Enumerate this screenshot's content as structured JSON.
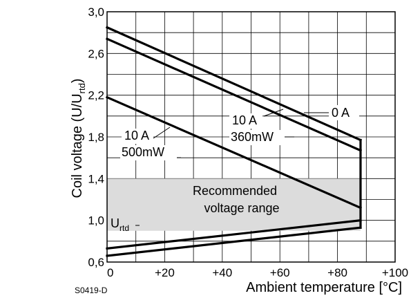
{
  "chart_data": {
    "type": "line",
    "xlabel": "Ambient temperature [°C]",
    "ylabel_main": "Coil voltage (U/U",
    "ylabel_sub": "rtd",
    "ylabel_close": ")",
    "figure_code": "S0419-D",
    "xlim": [
      0,
      100
    ],
    "ylim": [
      0.6,
      3.0
    ],
    "x_ticks": [
      "0",
      "+20",
      "+40",
      "+60",
      "+80",
      "+100"
    ],
    "y_ticks": [
      "0,6",
      "1,0",
      "1,4",
      "1,8",
      "2,2",
      "2,6",
      "3,0"
    ],
    "grid": true,
    "recommended_range": {
      "y_min": 0.9,
      "y_max": 1.4,
      "x_max": 88,
      "label_line1": "Recommended",
      "label_line2": "voltage range"
    },
    "series": [
      {
        "name": "0 A",
        "points": [
          [
            0,
            2.85
          ],
          [
            88,
            1.77
          ]
        ]
      },
      {
        "name": "10 A 360mW",
        "points": [
          [
            0,
            2.74
          ],
          [
            88,
            1.67
          ]
        ]
      },
      {
        "name": "10 A 500mW",
        "points": [
          [
            0,
            2.18
          ],
          [
            88,
            1.12
          ]
        ]
      },
      {
        "name": "U_rtd upper",
        "points": [
          [
            0,
            0.73
          ],
          [
            88,
            1.0
          ]
        ]
      },
      {
        "name": "U_rtd lower",
        "points": [
          [
            0,
            0.66
          ],
          [
            88,
            0.93
          ]
        ]
      }
    ],
    "vertical_edge": {
      "x": 88,
      "y_from": 0.93,
      "y_to": 1.77
    },
    "annotations": {
      "zero_a": "0 A",
      "ten_a_360_line1": "10 A",
      "ten_a_360_line2": "360mW",
      "ten_a_500_line1": "10 A",
      "ten_a_500_line2": "500mW",
      "urtd_main": "U",
      "urtd_sub": "rtd"
    }
  }
}
